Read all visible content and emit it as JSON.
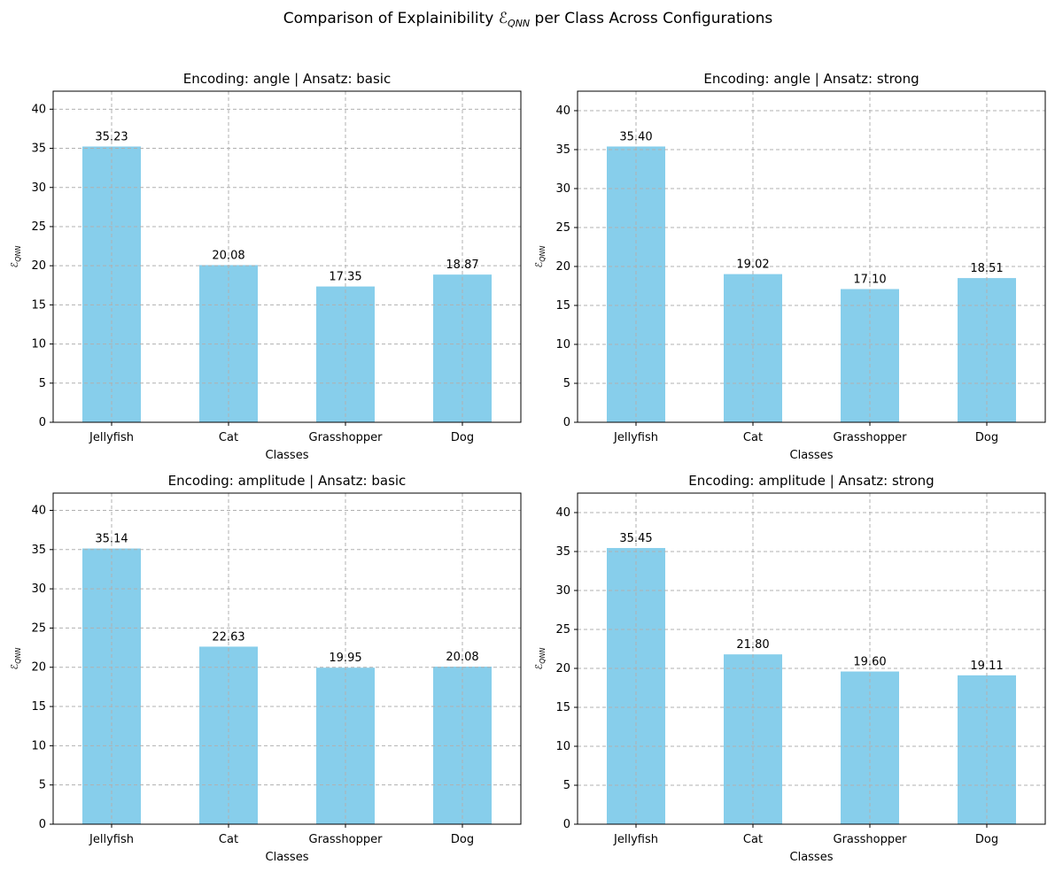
{
  "suptitle": {
    "prefix": "Comparison of Explainibility ",
    "symbol": "ℰ",
    "subscript": "QNN",
    "suffix": " per Class Across Configurations"
  },
  "colors": {
    "bar": "#87CEEB",
    "grid": "#b0b0b0",
    "axis": "#000000"
  },
  "chart_data": [
    {
      "type": "bar",
      "title": "Encoding: angle | Ansatz: basic",
      "xlabel": "Classes",
      "ylabel": {
        "symbol": "ℰ",
        "subscript": "QNN"
      },
      "categories": [
        "Jellyfish",
        "Cat",
        "Grasshopper",
        "Dog"
      ],
      "values": [
        35.23,
        20.08,
        17.35,
        18.87
      ],
      "value_labels": [
        "35.23",
        "20.08",
        "17.35",
        "18.87"
      ],
      "ylim": [
        0,
        42.3
      ],
      "yticks": [
        0,
        5,
        10,
        15,
        20,
        25,
        30,
        35,
        40
      ],
      "grid": true
    },
    {
      "type": "bar",
      "title": "Encoding: angle | Ansatz: strong",
      "xlabel": "Classes",
      "ylabel": {
        "symbol": "ℰ",
        "subscript": "QNN"
      },
      "categories": [
        "Jellyfish",
        "Cat",
        "Grasshopper",
        "Dog"
      ],
      "values": [
        35.4,
        19.02,
        17.1,
        18.51
      ],
      "value_labels": [
        "35.40",
        "19.02",
        "17.10",
        "18.51"
      ],
      "ylim": [
        0,
        42.5
      ],
      "yticks": [
        0,
        5,
        10,
        15,
        20,
        25,
        30,
        35,
        40
      ],
      "grid": true
    },
    {
      "type": "bar",
      "title": "Encoding: amplitude | Ansatz: basic",
      "xlabel": "Classes",
      "ylabel": {
        "symbol": "ℰ",
        "subscript": "QNN"
      },
      "categories": [
        "Jellyfish",
        "Cat",
        "Grasshopper",
        "Dog"
      ],
      "values": [
        35.14,
        22.63,
        19.95,
        20.08
      ],
      "value_labels": [
        "35.14",
        "22.63",
        "19.95",
        "20.08"
      ],
      "ylim": [
        0,
        42.2
      ],
      "yticks": [
        0,
        5,
        10,
        15,
        20,
        25,
        30,
        35,
        40
      ],
      "grid": true
    },
    {
      "type": "bar",
      "title": "Encoding: amplitude | Ansatz: strong",
      "xlabel": "Classes",
      "ylabel": {
        "symbol": "ℰ",
        "subscript": "QNN"
      },
      "categories": [
        "Jellyfish",
        "Cat",
        "Grasshopper",
        "Dog"
      ],
      "values": [
        35.45,
        21.8,
        19.6,
        19.11
      ],
      "value_labels": [
        "35.45",
        "21.80",
        "19.60",
        "19.11"
      ],
      "ylim": [
        0,
        42.5
      ],
      "yticks": [
        0,
        5,
        10,
        15,
        20,
        25,
        30,
        35,
        40
      ],
      "grid": true
    }
  ]
}
